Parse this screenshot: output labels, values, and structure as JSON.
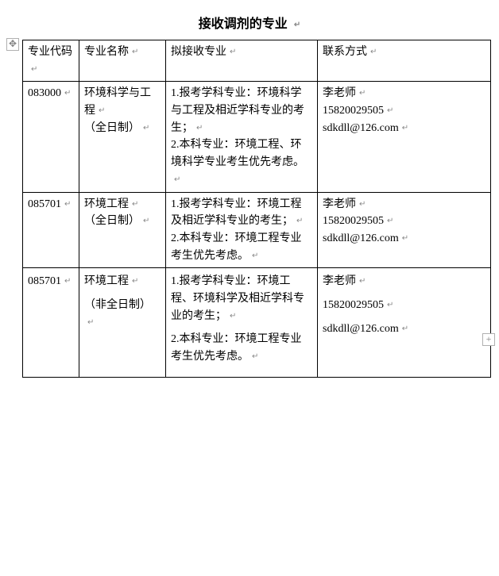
{
  "title": "接收调剂的专业",
  "crlf_mark": "↵",
  "anchor_glyph": "✥",
  "plus_glyph": "+",
  "header": {
    "col1": "专业代码",
    "col2": "专业名称",
    "col3": "拟接收专业",
    "col4": "联系方式"
  },
  "rows": [
    {
      "code": "083000",
      "name_lines": [
        "环境科学与工程",
        "（全日制）"
      ],
      "accept_lines": [
        "1.报考学科专业：环境科学与工程及相近学科专业的考生；",
        "2.本科专业：环境工程、环境科学专业考生优先考虑。"
      ],
      "contact_lines": [
        "李老师",
        "15820029505",
        "sdkdll@126.com"
      ],
      "spaced": false
    },
    {
      "code": "085701",
      "name_lines": [
        "环境工程",
        "（全日制）"
      ],
      "accept_lines": [
        "1.报考学科专业：环境工程及相近学科专业的考生；",
        "2.本科专业：环境工程专业考生优先考虑。"
      ],
      "contact_lines": [
        "李老师",
        "15820029505",
        "sdkdll@126.com"
      ],
      "spaced": false
    },
    {
      "code": "085701",
      "name_lines": [
        "环境工程",
        "（非全日制）"
      ],
      "accept_lines": [
        "1.报考学科专业：环境工程、环境科学及相近学科专业的考生；",
        "2.本科专业：环境工程专业考生优先考虑。"
      ],
      "contact_lines": [
        "李老师",
        "15820029505",
        "sdkdll@126.com"
      ],
      "spaced": true
    }
  ]
}
